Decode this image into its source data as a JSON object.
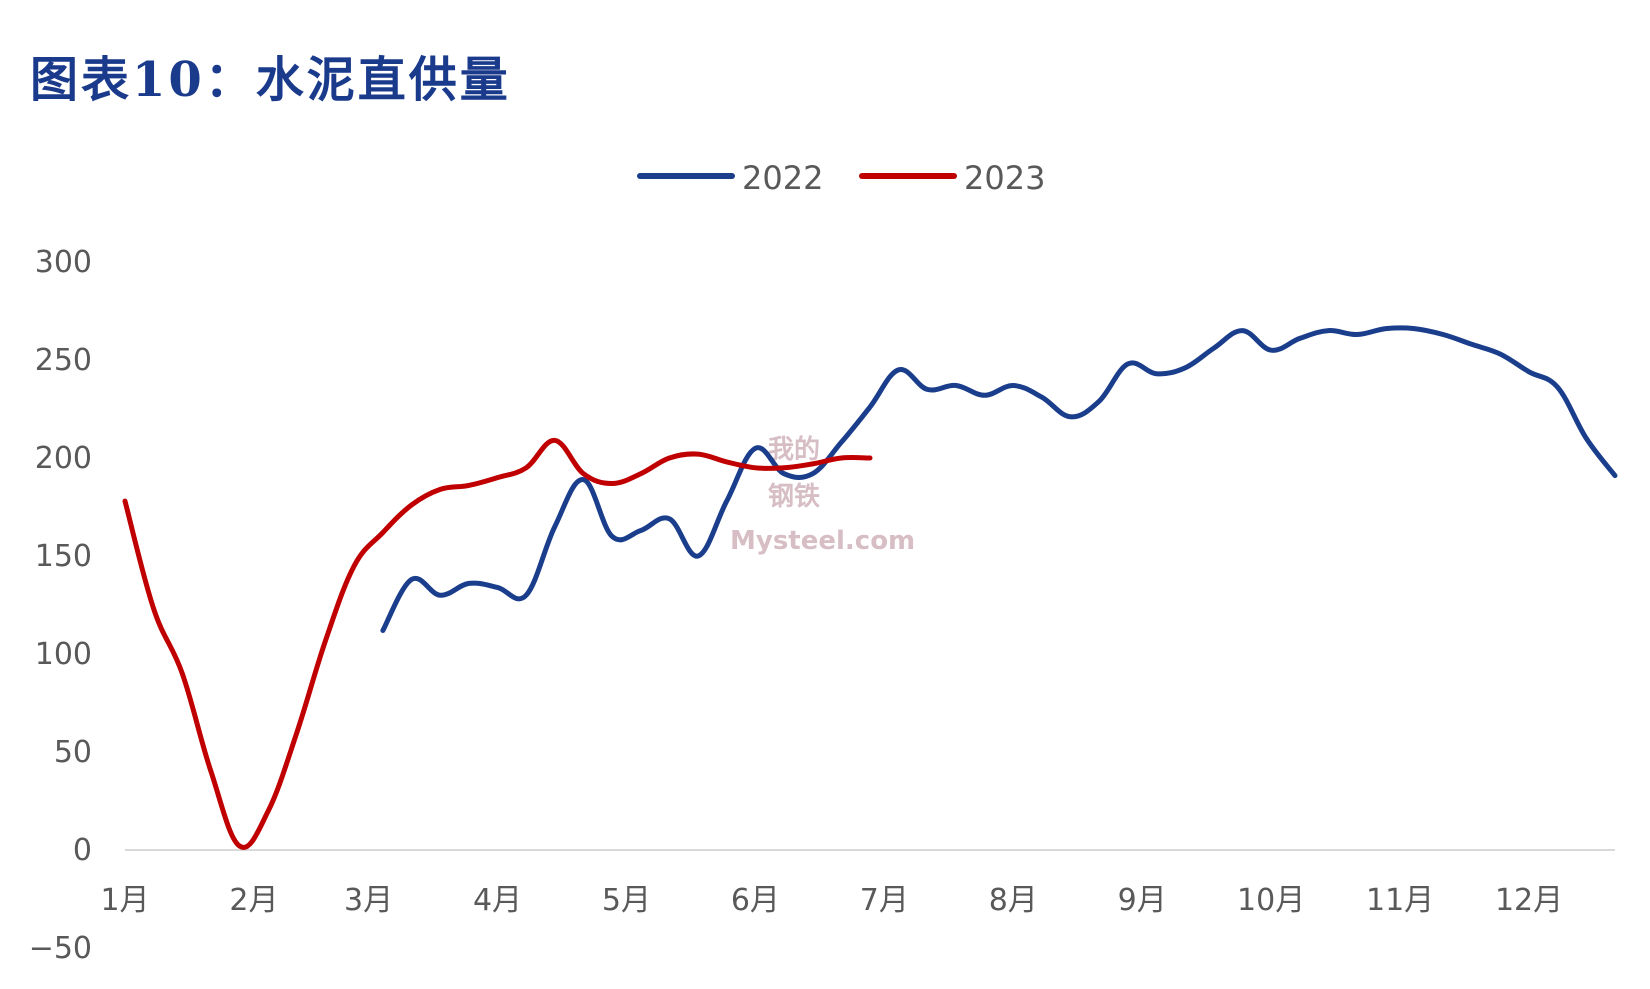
{
  "title": "图表10：水泥直供量",
  "colors": {
    "2022": "#1a3e8c",
    "2023": "#c00000",
    "title": "#1a3a8c",
    "axis": "#d9d9d9",
    "text": "#595959"
  },
  "watermark": {
    "line1": "我的",
    "line2": "钢铁",
    "line3": "Mysteel.com"
  },
  "chart_data": {
    "type": "line",
    "title": "",
    "xlabel": "",
    "ylabel": "",
    "ylim": [
      -50,
      300
    ],
    "yticks": [
      -50,
      0,
      50,
      100,
      150,
      200,
      250,
      300
    ],
    "xlim": [
      1,
      53
    ],
    "x_categories": [
      "1月",
      "2月",
      "3月",
      "4月",
      "5月",
      "6月",
      "7月",
      "8月",
      "9月",
      "10月",
      "11月",
      "12月"
    ],
    "x_category_positions": [
      1,
      5.5,
      9.5,
      14,
      18.5,
      23,
      27.5,
      32,
      36.5,
      41,
      45.5,
      50
    ],
    "grid": false,
    "legend_position": "top-center",
    "series": [
      {
        "name": "2022",
        "x": [
          10,
          11,
          12,
          13,
          14,
          15,
          16,
          17,
          18,
          19,
          20,
          21,
          22,
          23,
          24,
          25,
          26,
          27,
          28,
          29,
          30,
          31,
          32,
          33,
          34,
          35,
          36,
          37,
          38,
          39,
          40,
          41,
          42,
          43,
          44,
          45,
          46,
          47,
          48,
          49,
          50,
          51,
          52,
          53
        ],
        "y": [
          112,
          138,
          130,
          136,
          134,
          130,
          165,
          189,
          160,
          163,
          169,
          150,
          178,
          205,
          192,
          192,
          208,
          226,
          245,
          235,
          237,
          232,
          237,
          231,
          221,
          229,
          248,
          243,
          246,
          256,
          265,
          255,
          261,
          265,
          263,
          266,
          266,
          263,
          258,
          253,
          244,
          236,
          210,
          191
        ]
      },
      {
        "name": "2023",
        "x": [
          1,
          2,
          3,
          4,
          5,
          6,
          7,
          8,
          9,
          10,
          11,
          12,
          13,
          14,
          15,
          16,
          17,
          18,
          19,
          20,
          21,
          22,
          23,
          24,
          25,
          26,
          27
        ],
        "y": [
          178,
          123,
          90,
          40,
          2,
          20,
          60,
          107,
          145,
          162,
          176,
          184,
          186,
          190,
          195,
          209,
          192,
          187,
          192,
          200,
          202,
          198,
          195,
          195,
          197,
          200,
          200
        ]
      }
    ]
  }
}
